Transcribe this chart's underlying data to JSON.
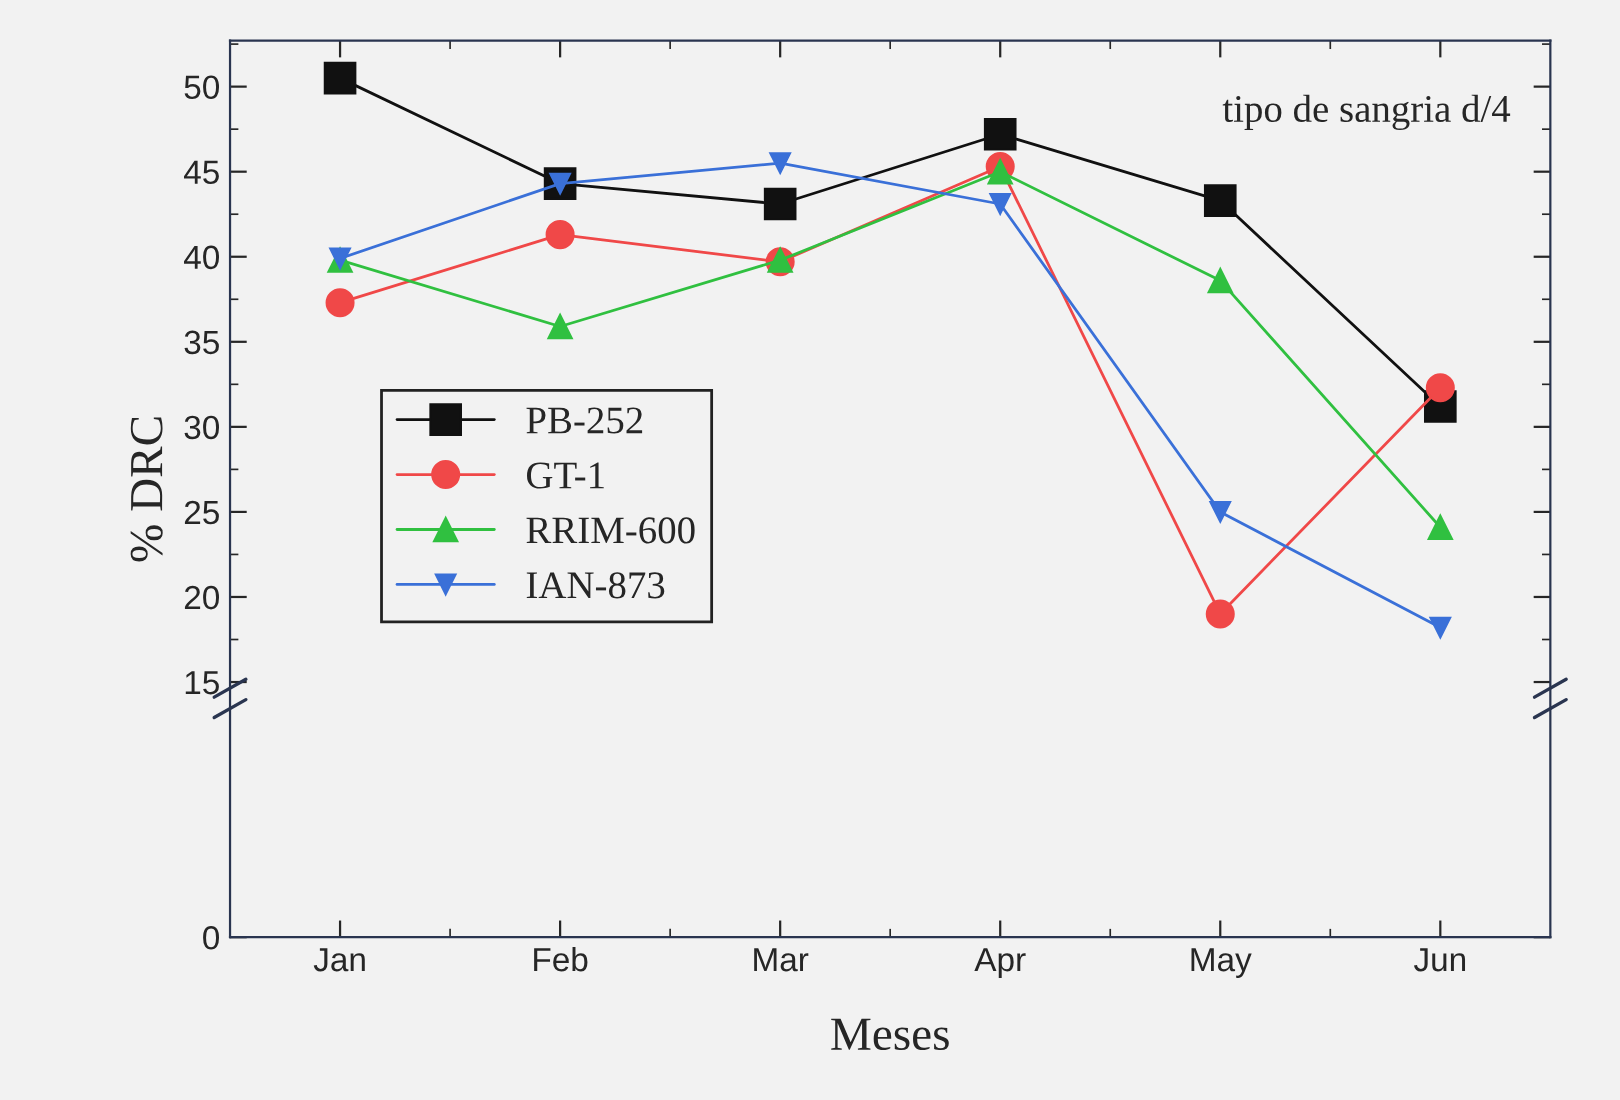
{
  "chart_data": {
    "type": "line",
    "xlabel": "Meses",
    "ylabel": "% DRC",
    "categories": [
      "Jan",
      "Feb",
      "Mar",
      "Apr",
      "May",
      "Jun"
    ],
    "ylim": [
      0,
      52.7
    ],
    "yticks": [
      0,
      15,
      20,
      25,
      30,
      35,
      40,
      45,
      50
    ],
    "grid": false,
    "legend": "lower left",
    "annotations": [
      "tipo de sangria d/4"
    ],
    "series": [
      {
        "name": "PB-252",
        "color": "#111111",
        "marker": "square",
        "values": [
          50.5,
          44.3,
          43.1,
          47.2,
          43.3,
          31.2
        ]
      },
      {
        "name": "GT-1",
        "color": "#f04848",
        "marker": "circle",
        "values": [
          37.3,
          41.3,
          39.7,
          45.3,
          19.0,
          32.3
        ]
      },
      {
        "name": "RRIM-600",
        "color": "#30c040",
        "marker": "triangle",
        "values": [
          39.8,
          35.9,
          39.8,
          45.0,
          38.6,
          24.1
        ]
      },
      {
        "name": "IAN-873",
        "color": "#3a70d8",
        "marker": "triangle_down",
        "values": [
          39.9,
          44.3,
          45.5,
          43.1,
          25.0,
          18.2
        ]
      }
    ]
  }
}
